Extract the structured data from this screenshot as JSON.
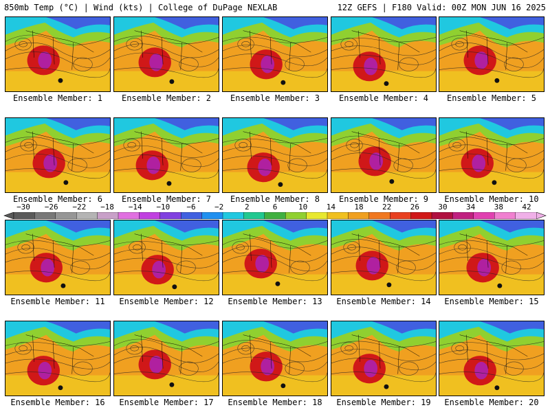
{
  "header": {
    "left_title": "850mb Temp (°C) | Wind (kts) | College of DuPage NEXLAB",
    "right_title": "12Z GEFS | F180 Valid: 00Z MON JUN 16 2025"
  },
  "panels": [
    {
      "label": "Ensemble Member: 1"
    },
    {
      "label": "Ensemble Member: 2"
    },
    {
      "label": "Ensemble Member: 3"
    },
    {
      "label": "Ensemble Member: 4"
    },
    {
      "label": "Ensemble Member: 5"
    },
    {
      "label": "Ensemble Member: 6"
    },
    {
      "label": "Ensemble Member: 7"
    },
    {
      "label": "Ensemble Member: 8"
    },
    {
      "label": "Ensemble Member: 9"
    },
    {
      "label": "Ensemble Member: 10"
    },
    {
      "label": "Ensemble Member: 11"
    },
    {
      "label": "Ensemble Member: 12"
    },
    {
      "label": "Ensemble Member: 13"
    },
    {
      "label": "Ensemble Member: 14"
    },
    {
      "label": "Ensemble Member: 15"
    },
    {
      "label": "Ensemble Member: 16"
    },
    {
      "label": "Ensemble Member: 17"
    },
    {
      "label": "Ensemble Member: 18"
    },
    {
      "label": "Ensemble Member: 19"
    },
    {
      "label": "Ensemble Member: 20"
    }
  ],
  "colorbar": {
    "ticks": [
      "−30",
      "−26",
      "−22",
      "−18",
      "−14",
      "−10",
      "−6",
      "−2",
      "2",
      "6",
      "10",
      "14",
      "18",
      "22",
      "26",
      "30",
      "34",
      "38",
      "42"
    ],
    "colors": [
      "#5a5a5a",
      "#787878",
      "#969696",
      "#b4b4b4",
      "#c8a0c8",
      "#e070e0",
      "#c040e0",
      "#8040e0",
      "#4060e0",
      "#2090f0",
      "#20c8e0",
      "#20c890",
      "#40b040",
      "#90d030",
      "#e8e830",
      "#f0c020",
      "#f0a020",
      "#f07820",
      "#e84020",
      "#d01818",
      "#b01040",
      "#c02080",
      "#e040b0",
      "#f080d0",
      "#f0b0e8"
    ]
  },
  "map_colors": {
    "warm_base": "#f0a020",
    "hot_core": "#d01818",
    "extreme_core": "#b020a0",
    "cool": "#20c8e0",
    "cold": "#4060e0",
    "mild": "#90d030",
    "ocean_warm": "#f0c020"
  }
}
